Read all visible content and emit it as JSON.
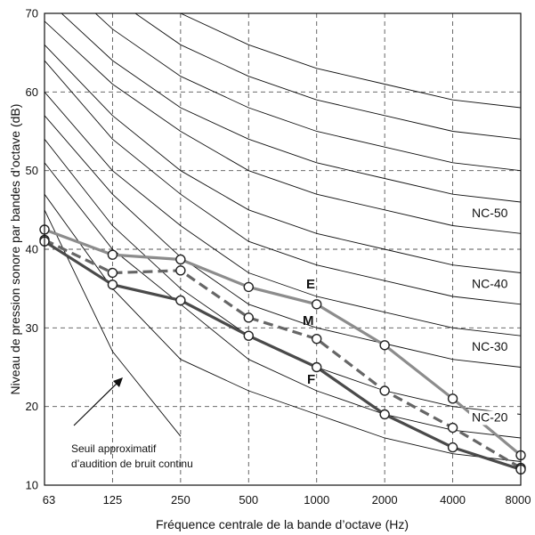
{
  "chart_data": {
    "type": "line",
    "xlabel": "Fréquence centrale de la bande d’octave (Hz)",
    "ylabel": "Niveau de pression sonore par bandes d’octave (dB)",
    "categories": [
      "63",
      "125",
      "250",
      "500",
      "1000",
      "2000",
      "4000",
      "8000"
    ],
    "yticks": [
      "10",
      "20",
      "30",
      "40",
      "50",
      "60",
      "70"
    ],
    "ylim": [
      10,
      70
    ],
    "grid": true,
    "nc_curves": [
      {
        "label": "",
        "values": [
          47,
          35,
          26,
          22,
          19,
          16,
          14,
          13
        ]
      },
      {
        "label": "NC-20",
        "values": [
          51,
          40,
          33,
          26,
          22,
          19,
          17,
          16
        ]
      },
      {
        "label": "",
        "values": [
          54,
          43,
          35,
          29,
          25,
          22,
          20,
          19
        ]
      },
      {
        "label": "NC-30",
        "values": [
          57,
          47,
          39,
          33,
          30,
          28,
          26,
          25
        ]
      },
      {
        "label": "",
        "values": [
          60,
          50,
          43,
          37,
          34,
          32,
          30,
          29
        ]
      },
      {
        "label": "NC-40",
        "values": [
          64,
          54,
          47,
          41,
          38,
          36,
          34,
          33
        ]
      },
      {
        "label": "",
        "values": [
          66,
          57,
          50,
          45,
          42,
          40,
          38,
          37
        ]
      },
      {
        "label": "NC-50",
        "values": [
          69,
          61,
          55,
          50,
          47,
          45,
          43,
          42
        ]
      },
      {
        "label": "",
        "values": [
          72,
          64,
          58,
          54,
          51,
          49,
          47,
          46
        ]
      },
      {
        "label": "",
        "values": [
          76,
          68,
          62,
          58,
          55,
          53,
          51,
          50
        ]
      },
      {
        "label": "",
        "values": [
          80,
          72,
          66,
          62,
          59,
          57,
          55,
          54
        ]
      },
      {
        "label": "",
        "values": [
          84,
          76,
          70,
          66,
          63,
          61,
          59,
          58
        ]
      }
    ],
    "threshold": {
      "label": "",
      "values": [
        45,
        27,
        16.2,
        null,
        null,
        null,
        null,
        null
      ]
    },
    "series": [
      {
        "name": "E",
        "color": "#8c8c8c",
        "dash": false,
        "values": [
          42.5,
          39.3,
          38.7,
          35.2,
          33,
          27.8,
          21,
          13.8
        ]
      },
      {
        "name": "M",
        "color": "#666666",
        "dash": true,
        "values": [
          41.2,
          37,
          37.3,
          31.3,
          28.6,
          22,
          17.3,
          12.2
        ]
      },
      {
        "name": "F",
        "color": "#4a4a4a",
        "dash": false,
        "values": [
          41,
          35.5,
          33.5,
          29,
          25,
          19,
          14.8,
          12
        ]
      }
    ],
    "annotation": {
      "line1": "Seuil approximatif",
      "line2": "d’audition de bruit continu"
    }
  }
}
